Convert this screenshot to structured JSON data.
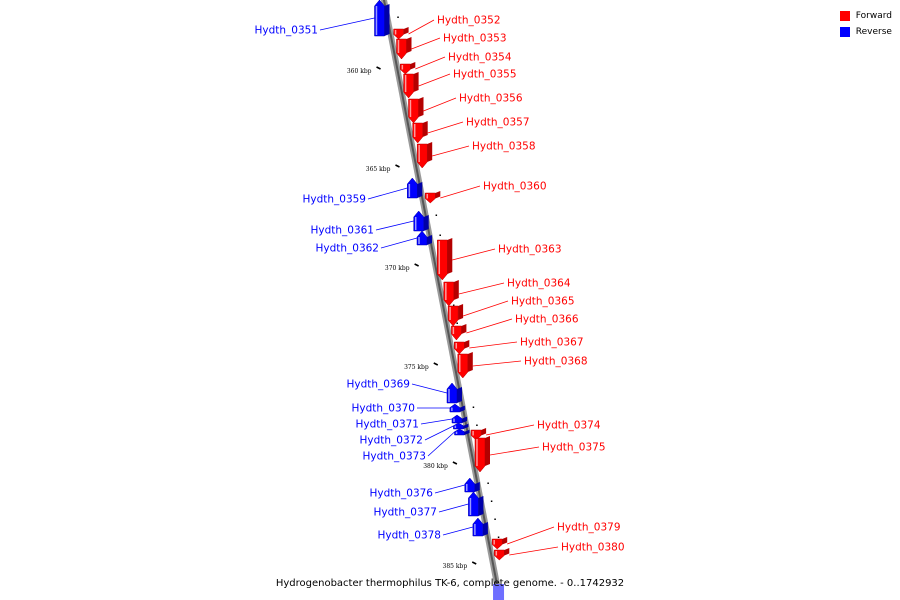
{
  "legend": {
    "forward_label": "Forward",
    "reverse_label": "Reverse",
    "forward_color": "#ff0000",
    "reverse_color": "#0000ff"
  },
  "caption": "Hydrogenobacter thermophilus TK-6, complete genome. - 0..1742932",
  "axis": {
    "unit": "kbp",
    "ticks": [
      {
        "label": "360 kbp",
        "kbp": 360
      },
      {
        "label": "365 kbp",
        "kbp": 365
      },
      {
        "label": "370 kbp",
        "kbp": 370
      },
      {
        "label": "375 kbp",
        "kbp": 375
      },
      {
        "label": "380 kbp",
        "kbp": 380
      },
      {
        "label": "385 kbp",
        "kbp": 385
      }
    ]
  },
  "genes": [
    {
      "name": "Hydth_0351",
      "strand": "reverse"
    },
    {
      "name": "Hydth_0352",
      "strand": "forward"
    },
    {
      "name": "Hydth_0353",
      "strand": "forward"
    },
    {
      "name": "Hydth_0354",
      "strand": "forward"
    },
    {
      "name": "Hydth_0355",
      "strand": "forward"
    },
    {
      "name": "Hydth_0356",
      "strand": "forward"
    },
    {
      "name": "Hydth_0357",
      "strand": "forward"
    },
    {
      "name": "Hydth_0358",
      "strand": "forward"
    },
    {
      "name": "Hydth_0359",
      "strand": "reverse"
    },
    {
      "name": "Hydth_0360",
      "strand": "forward"
    },
    {
      "name": "Hydth_0361",
      "strand": "reverse"
    },
    {
      "name": "Hydth_0362",
      "strand": "reverse"
    },
    {
      "name": "Hydth_0363",
      "strand": "forward"
    },
    {
      "name": "Hydth_0364",
      "strand": "forward"
    },
    {
      "name": "Hydth_0365",
      "strand": "forward"
    },
    {
      "name": "Hydth_0366",
      "strand": "forward"
    },
    {
      "name": "Hydth_0367",
      "strand": "forward"
    },
    {
      "name": "Hydth_0368",
      "strand": "forward"
    },
    {
      "name": "Hydth_0369",
      "strand": "reverse"
    },
    {
      "name": "Hydth_0370",
      "strand": "reverse"
    },
    {
      "name": "Hydth_0371",
      "strand": "reverse"
    },
    {
      "name": "Hydth_0372",
      "strand": "reverse"
    },
    {
      "name": "Hydth_0373",
      "strand": "reverse"
    },
    {
      "name": "Hydth_0374",
      "strand": "forward"
    },
    {
      "name": "Hydth_0375",
      "strand": "forward"
    },
    {
      "name": "Hydth_0376",
      "strand": "reverse"
    },
    {
      "name": "Hydth_0377",
      "strand": "reverse"
    },
    {
      "name": "Hydth_0378",
      "strand": "reverse"
    },
    {
      "name": "Hydth_0379",
      "strand": "forward"
    },
    {
      "name": "Hydth_0380",
      "strand": "forward"
    }
  ]
}
